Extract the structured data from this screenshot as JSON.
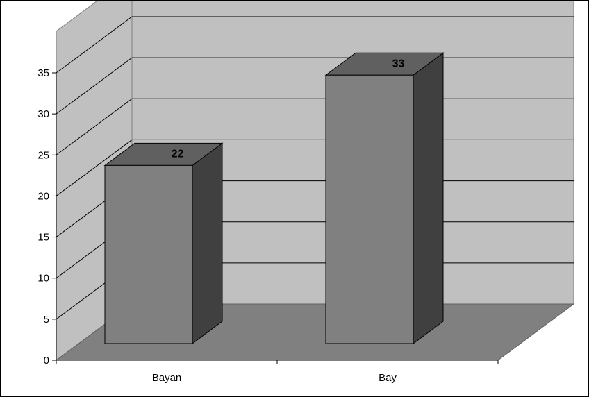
{
  "chart_data": {
    "type": "bar",
    "title": "",
    "xlabel": "",
    "ylabel": "",
    "categories": [
      "Bayan",
      "Bay"
    ],
    "values": [
      22,
      33
    ],
    "data_labels": [
      "22",
      "33"
    ],
    "ylim": [
      0,
      35
    ],
    "yticks": [
      "0",
      "5",
      "10",
      "15",
      "20",
      "25",
      "30",
      "35"
    ],
    "grid": true,
    "legend": "none",
    "style": "3d-column",
    "colors": {
      "wall": "#c0c0c0",
      "floor": "#808080",
      "bar_front": "#808080",
      "bar_top": "#606060",
      "bar_side": "#404040",
      "gridline": "#000000"
    }
  }
}
